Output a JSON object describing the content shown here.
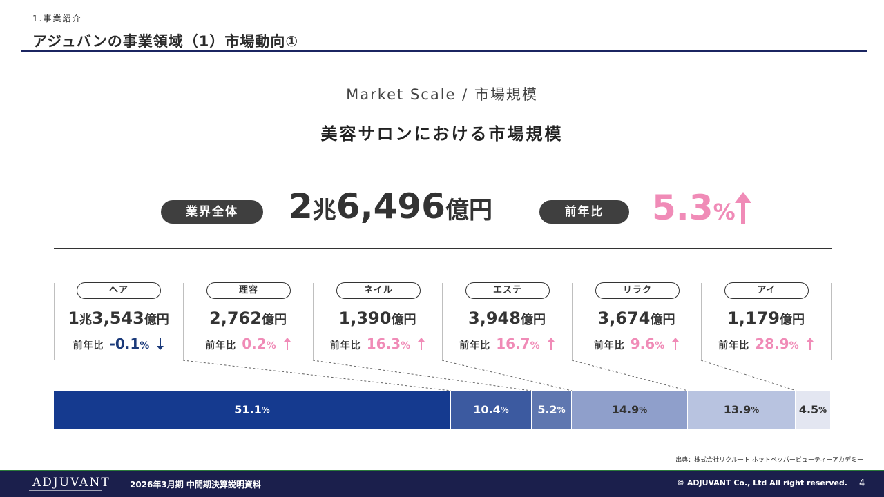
{
  "header": {
    "section": "1.事業紹介",
    "title": "アジュバンの事業領域（1）市場動向①"
  },
  "subtitle_en": "Market Scale /  市場規模",
  "heading": "美容サロンにおける市場規模",
  "summary": {
    "total_label": "業界全体",
    "total_num1": "2",
    "total_unit1": "兆",
    "total_num2": "6,496",
    "total_unit2": "億円",
    "growth_label": "前年比",
    "growth_value": "5.3",
    "growth_unit": "%"
  },
  "colors": {
    "navy_dark": "#153a8f",
    "pink": "#f08bb7",
    "footer_bg": "#1b1f4c"
  },
  "segments": [
    {
      "label": "ヘア",
      "value_prefix": "1",
      "value_prefix_unit": "兆",
      "value": "3,543",
      "unit": "億円",
      "yoy_label": "前年比",
      "yoy": "-0.1",
      "yoy_unit": "%",
      "direction": "down"
    },
    {
      "label": "理容",
      "value_prefix": "",
      "value_prefix_unit": "",
      "value": "2,762",
      "unit": "億円",
      "yoy_label": "前年比",
      "yoy": "0.2",
      "yoy_unit": "%",
      "direction": "up"
    },
    {
      "label": "ネイル",
      "value_prefix": "",
      "value_prefix_unit": "",
      "value": "1,390",
      "unit": "億円",
      "yoy_label": "前年比",
      "yoy": "16.3",
      "yoy_unit": "%",
      "direction": "up"
    },
    {
      "label": "エステ",
      "value_prefix": "",
      "value_prefix_unit": "",
      "value": "3,948",
      "unit": "億円",
      "yoy_label": "前年比",
      "yoy": "16.7",
      "yoy_unit": "%",
      "direction": "up"
    },
    {
      "label": "リラク",
      "value_prefix": "",
      "value_prefix_unit": "",
      "value": "3,674",
      "unit": "億円",
      "yoy_label": "前年比",
      "yoy": "9.6",
      "yoy_unit": "%",
      "direction": "up"
    },
    {
      "label": "アイ",
      "value_prefix": "",
      "value_prefix_unit": "",
      "value": "1,179",
      "unit": "億円",
      "yoy_label": "前年比",
      "yoy": "28.9",
      "yoy_unit": "%",
      "direction": "up"
    }
  ],
  "share_bar": [
    {
      "value": "51.1",
      "unit": "%",
      "color": "#153a8f",
      "text_color": "#ffffff"
    },
    {
      "value": "10.4",
      "unit": "%",
      "color": "#3c5aa0",
      "text_color": "#ffffff"
    },
    {
      "value": "5.2",
      "unit": "%",
      "color": "#5f77b0",
      "text_color": "#ffffff"
    },
    {
      "value": "14.9",
      "unit": "%",
      "color": "#8f9fcb",
      "text_color": "#333333"
    },
    {
      "value": "13.9",
      "unit": "%",
      "color": "#b8c3e0",
      "text_color": "#333333"
    },
    {
      "value": "4.5",
      "unit": "%",
      "color": "#e3e6f1",
      "text_color": "#333333"
    }
  ],
  "source": "出典：株式会社リクルート ホットペッパービューティーアカデミー",
  "footer": {
    "logo": "ADJUVANT",
    "doc_title": "2026年3月期 中間期決算説明資料",
    "copyright": "© ADJUVANT Co., Ltd All right reserved.",
    "page": "4"
  }
}
